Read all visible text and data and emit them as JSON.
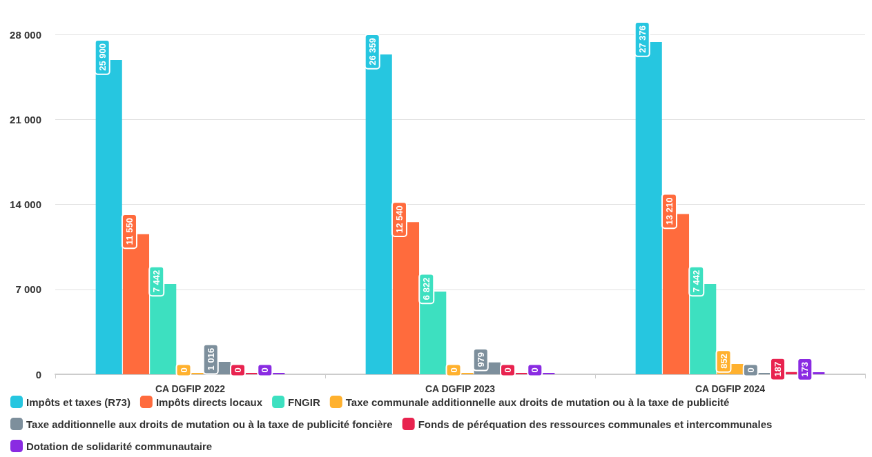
{
  "chart_data": {
    "type": "bar",
    "categories": [
      "CA DGFIP 2022",
      "CA DGFIP 2023",
      "CA DGFIP 2024"
    ],
    "series": [
      {
        "name": "Impôts et taxes (R73)",
        "color": "#26c6e0",
        "values": [
          25900,
          26359,
          27376
        ]
      },
      {
        "name": "Impôts directs locaux",
        "color": "#ff6b3d",
        "values": [
          11550,
          12540,
          13210
        ]
      },
      {
        "name": "FNGIR",
        "color": "#3de0c0",
        "values": [
          7442,
          6822,
          7442
        ]
      },
      {
        "name": "Taxe communale additionnelle aux droits de mutation ou à la taxe de publicité",
        "color": "#ffb12e",
        "values": [
          0,
          0,
          852
        ]
      },
      {
        "name": "Taxe additionnelle aux droits de mutation ou à la taxe de publicité foncière",
        "color": "#7d8f9c",
        "values": [
          1016,
          979,
          0
        ]
      },
      {
        "name": "Fonds de péréquation des ressources communales et intercommunales",
        "color": "#e8234f",
        "values": [
          0,
          0,
          187
        ]
      },
      {
        "name": "Dotation de solidarité communautaire",
        "color": "#8a2be2",
        "values": [
          0,
          0,
          173
        ]
      }
    ],
    "ylim": [
      0,
      28000
    ],
    "yticks": [
      0,
      7000,
      14000,
      21000,
      28000
    ],
    "grid": "y",
    "legend": "bottom",
    "data_labels": true
  }
}
